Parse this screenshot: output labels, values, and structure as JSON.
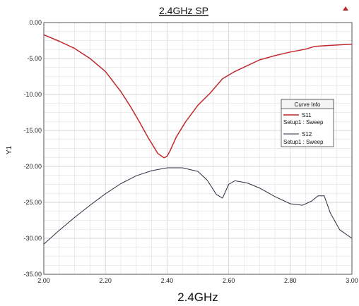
{
  "chart_data": {
    "type": "line",
    "title": "2.4GHz SP",
    "xlabel": "2.4GHz",
    "ylabel": "Y1",
    "xlim": [
      2.0,
      3.0
    ],
    "ylim": [
      -35.0,
      0.0
    ],
    "x_ticks": [
      "2.00",
      "2.20",
      "2.40",
      "2.60",
      "2.80",
      "3.00"
    ],
    "y_ticks": [
      "0.00",
      "-5.00",
      "-10.00",
      "-15.00",
      "-20.00",
      "-25.00",
      "-30.00",
      "-35.00"
    ],
    "grid": true,
    "legend": {
      "title": "Curve Info",
      "placement": "right"
    },
    "series": [
      {
        "name": "S11",
        "sub": "Setup1 : Sweep",
        "color": "#c0282d",
        "x": [
          2.0,
          2.05,
          2.1,
          2.15,
          2.2,
          2.25,
          2.28,
          2.31,
          2.34,
          2.37,
          2.39,
          2.4,
          2.41,
          2.43,
          2.46,
          2.5,
          2.54,
          2.58,
          2.62,
          2.66,
          2.7,
          2.75,
          2.8,
          2.85,
          2.88,
          2.92,
          2.96,
          3.0
        ],
        "y": [
          -1.7,
          -2.6,
          -3.6,
          -5.0,
          -6.8,
          -9.6,
          -11.6,
          -13.8,
          -16.1,
          -18.2,
          -18.8,
          -18.6,
          -17.8,
          -15.9,
          -13.8,
          -11.5,
          -9.8,
          -7.8,
          -6.8,
          -6.0,
          -5.2,
          -4.6,
          -4.1,
          -3.7,
          -3.3,
          -3.2,
          -3.1,
          -3.0
        ]
      },
      {
        "name": "S12",
        "sub": "Setup1 : Sweep",
        "color": "#2b2d42",
        "x": [
          2.0,
          2.05,
          2.1,
          2.15,
          2.2,
          2.25,
          2.3,
          2.35,
          2.4,
          2.45,
          2.5,
          2.53,
          2.56,
          2.58,
          2.6,
          2.62,
          2.66,
          2.7,
          2.75,
          2.8,
          2.84,
          2.87,
          2.89,
          2.91,
          2.93,
          2.96,
          3.0
        ],
        "y": [
          -30.8,
          -28.9,
          -27.1,
          -25.4,
          -23.8,
          -22.4,
          -21.3,
          -20.6,
          -20.2,
          -20.2,
          -20.7,
          -21.9,
          -23.9,
          -24.4,
          -22.5,
          -22.0,
          -22.3,
          -23.0,
          -24.2,
          -25.2,
          -25.4,
          -24.8,
          -24.1,
          -24.1,
          -26.5,
          -28.8,
          -30.0
        ]
      }
    ]
  }
}
